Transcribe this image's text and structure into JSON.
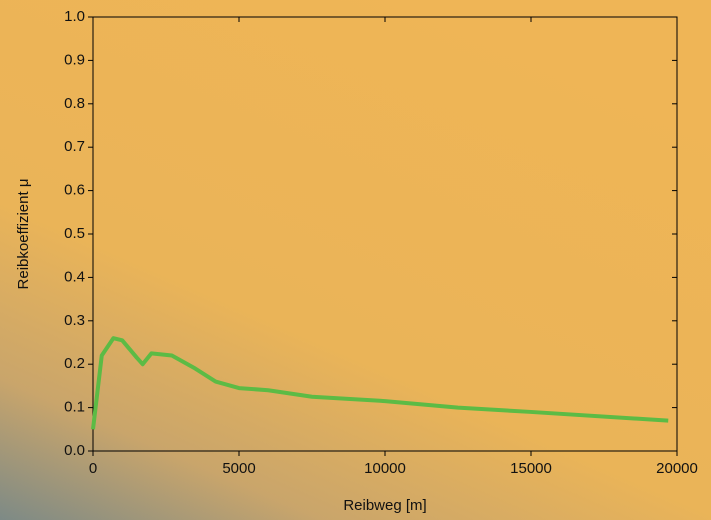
{
  "chart_data": {
    "type": "line",
    "xlabel": "Reibweg [m]",
    "ylabel": "Reibkoeffizient μ",
    "x": [
      0,
      300,
      700,
      1000,
      1500,
      1700,
      2000,
      2700,
      3500,
      4200,
      5000,
      6000,
      7500,
      10000,
      12500,
      15000,
      19700
    ],
    "series": [
      {
        "color": "#5cbb45",
        "values": [
          0.05,
          0.22,
          0.26,
          0.255,
          0.215,
          0.2,
          0.225,
          0.22,
          0.19,
          0.16,
          0.145,
          0.14,
          0.125,
          0.115,
          0.1,
          0.09,
          0.07
        ]
      }
    ],
    "xlim": [
      0,
      20000
    ],
    "xticks": [
      0,
      5000,
      10000,
      15000,
      20000
    ],
    "ylim": [
      0,
      1
    ],
    "yticks": [
      {
        "value": 0,
        "label": "0.0"
      },
      0.1,
      0.2,
      0.3,
      0.4,
      0.5,
      0.6,
      0.7,
      0.8,
      0.9,
      {
        "value": 1,
        "label": "1.0"
      }
    ]
  }
}
